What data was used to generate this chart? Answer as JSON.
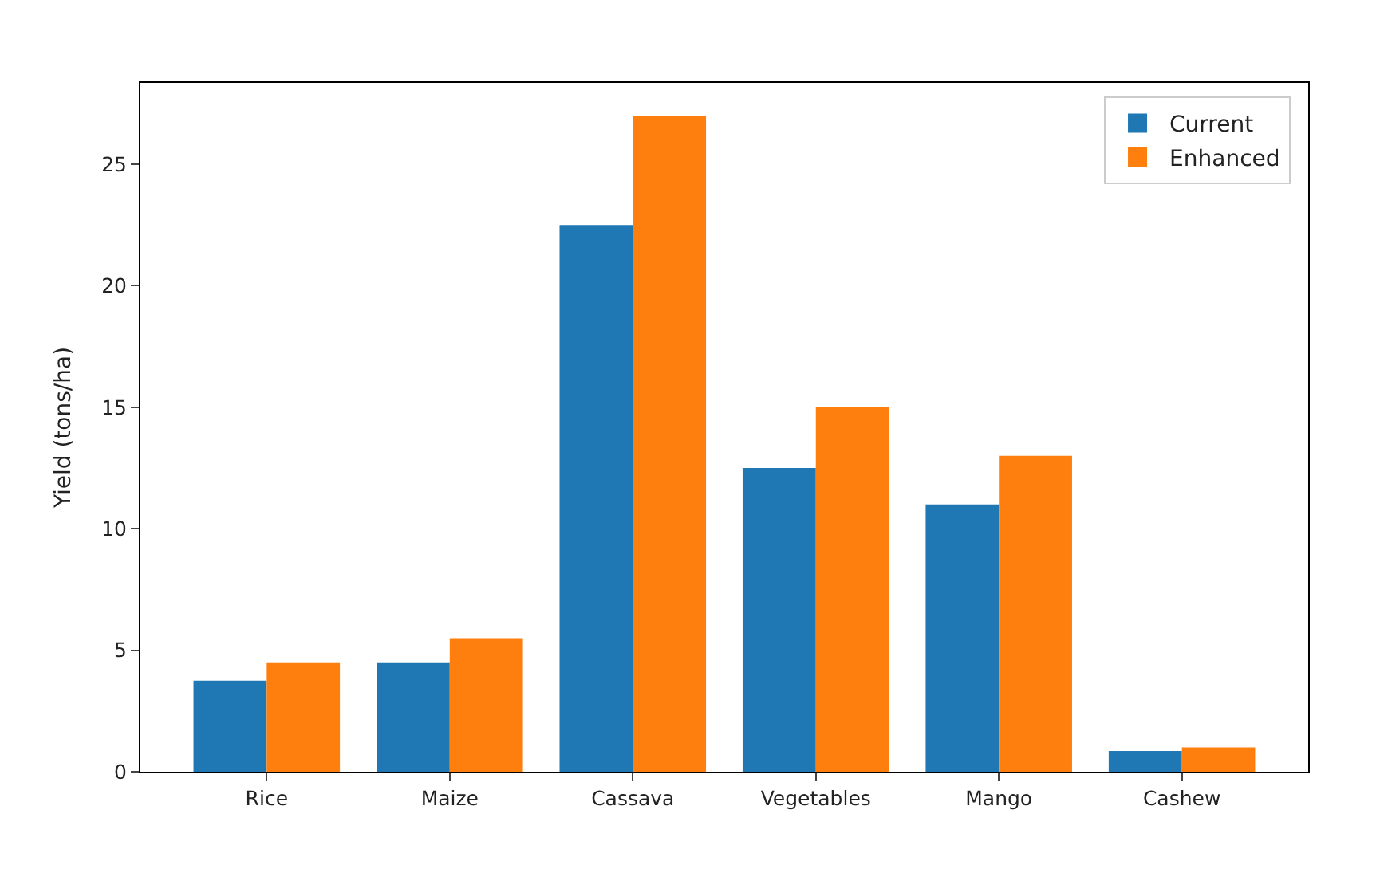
{
  "chart_data": {
    "type": "bar",
    "ylabel": "Yield (tons/ha)",
    "categories": [
      "Rice",
      "Maize",
      "Cassava",
      "Vegetables",
      "Mango",
      "Cashew"
    ],
    "series": [
      {
        "name": "Current",
        "color": "#1f77b4",
        "values": [
          3.75,
          4.5,
          22.5,
          12.5,
          11,
          0.85
        ]
      },
      {
        "name": "Enhanced",
        "color": "#ff7f0e",
        "values": [
          4.5,
          5.5,
          27,
          15,
          13,
          1
        ]
      }
    ],
    "ylim": [
      0,
      28.35
    ],
    "yticks": [
      0,
      5,
      10,
      15,
      20,
      25
    ],
    "legend": "top right"
  }
}
